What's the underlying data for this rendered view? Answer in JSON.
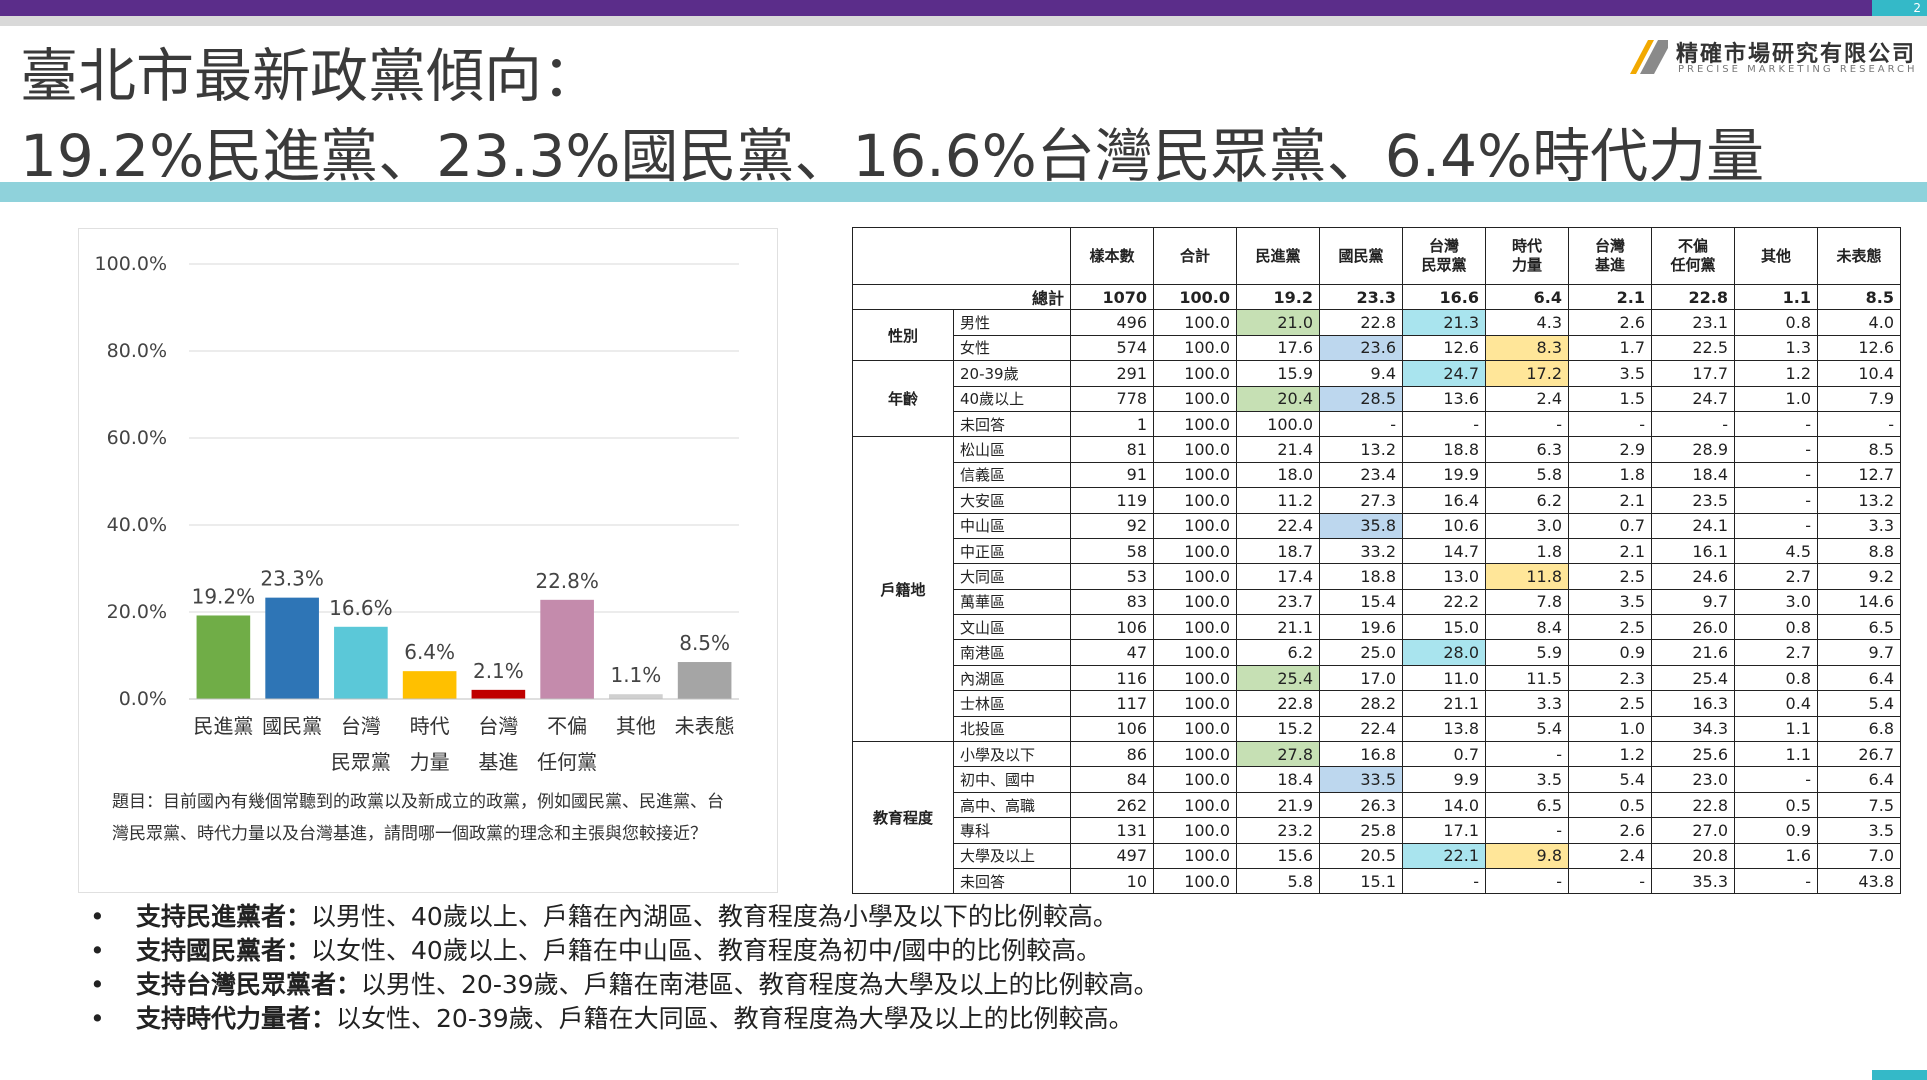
{
  "page_number": "2",
  "title_line1": "臺北市最新政黨傾向：",
  "title_line2": "19.2%民進黨、23.3%國民黨、16.6%台灣民眾黨、6.4%時代力量",
  "logo": {
    "name_cn": "精確市場研究有限公司",
    "name_en": "PRECISE MARKETING RESEARCH"
  },
  "colors": {
    "purple": "#5b2d8a",
    "teal": "#8fd2db",
    "accent": "#34b9c8"
  },
  "question_text": "題目：目前國內有幾個常聽到的政黨以及新成立的政黨，例如國民黨、民進黨、台灣民眾黨、時代力量以及台灣基進，請問哪一個政黨的理念和主張與您較接近？",
  "chart_data": {
    "type": "bar",
    "categories": [
      "民進黨",
      "國民黨",
      "台灣民眾黨",
      "時代力量",
      "台灣基進",
      "不偏任何黨",
      "其他",
      "未表態"
    ],
    "category_lines": [
      [
        "民進黨"
      ],
      [
        "國民黨"
      ],
      [
        "台灣",
        "民眾黨"
      ],
      [
        "時代",
        "力量"
      ],
      [
        "台灣",
        "基進"
      ],
      [
        "不偏",
        "任何黨"
      ],
      [
        "其他"
      ],
      [
        "未表態"
      ]
    ],
    "values": [
      19.2,
      23.3,
      16.6,
      6.4,
      2.1,
      22.8,
      1.1,
      8.5
    ],
    "value_labels": [
      "19.2%",
      "23.3%",
      "16.6%",
      "6.4%",
      "2.1%",
      "22.8%",
      "1.1%",
      "8.5%"
    ],
    "colors": [
      "#70ad47",
      "#2e75b6",
      "#5bc8d8",
      "#ffc000",
      "#c00000",
      "#c48bac",
      "#d0d0d0",
      "#a5a5a5"
    ],
    "ylim": [
      0,
      100
    ],
    "yticks": [
      "0.0%",
      "20.0%",
      "40.0%",
      "60.0%",
      "80.0%",
      "100.0%"
    ],
    "grid": true,
    "xlabel": "",
    "ylabel": "",
    "title": ""
  },
  "table": {
    "headers": [
      "樣本數",
      "合計",
      "民進黨",
      "國民黨",
      "台灣\n民眾黨",
      "時代\n力量",
      "台灣\n基進",
      "不偏\n任何黨",
      "其他",
      "未表態"
    ],
    "total": {
      "label": "總計",
      "values": [
        "1070",
        "100.0",
        "19.2",
        "23.3",
        "16.6",
        "6.4",
        "2.1",
        "22.8",
        "1.1",
        "8.5"
      ]
    },
    "groups": [
      {
        "name": "性別",
        "rows": [
          {
            "label": "男性",
            "values": [
              "496",
              "100.0",
              "21.0",
              "22.8",
              "21.3",
              "4.3",
              "2.6",
              "23.1",
              "0.8",
              "4.0"
            ],
            "hl": {
              "2": "g",
              "4": "c"
            }
          },
          {
            "label": "女性",
            "values": [
              "574",
              "100.0",
              "17.6",
              "23.6",
              "12.6",
              "8.3",
              "1.7",
              "22.5",
              "1.3",
              "12.6"
            ],
            "hl": {
              "3": "b",
              "5": "y"
            }
          }
        ]
      },
      {
        "name": "年齡",
        "rows": [
          {
            "label": "20-39歲",
            "values": [
              "291",
              "100.0",
              "15.9",
              "9.4",
              "24.7",
              "17.2",
              "3.5",
              "17.7",
              "1.2",
              "10.4"
            ],
            "hl": {
              "4": "c",
              "5": "y"
            }
          },
          {
            "label": "40歲以上",
            "values": [
              "778",
              "100.0",
              "20.4",
              "28.5",
              "13.6",
              "2.4",
              "1.5",
              "24.7",
              "1.0",
              "7.9"
            ],
            "hl": {
              "2": "g",
              "3": "b"
            }
          },
          {
            "label": "未回答",
            "values": [
              "1",
              "100.0",
              "100.0",
              "-",
              "-",
              "-",
              "-",
              "-",
              "-",
              "-"
            ],
            "hl": {}
          }
        ]
      },
      {
        "name": "戶籍地",
        "rows": [
          {
            "label": "松山區",
            "values": [
              "81",
              "100.0",
              "21.4",
              "13.2",
              "18.8",
              "6.3",
              "2.9",
              "28.9",
              "-",
              "8.5"
            ],
            "hl": {}
          },
          {
            "label": "信義區",
            "values": [
              "91",
              "100.0",
              "18.0",
              "23.4",
              "19.9",
              "5.8",
              "1.8",
              "18.4",
              "-",
              "12.7"
            ],
            "hl": {}
          },
          {
            "label": "大安區",
            "values": [
              "119",
              "100.0",
              "11.2",
              "27.3",
              "16.4",
              "6.2",
              "2.1",
              "23.5",
              "-",
              "13.2"
            ],
            "hl": {}
          },
          {
            "label": "中山區",
            "values": [
              "92",
              "100.0",
              "22.4",
              "35.8",
              "10.6",
              "3.0",
              "0.7",
              "24.1",
              "-",
              "3.3"
            ],
            "hl": {
              "3": "b"
            }
          },
          {
            "label": "中正區",
            "values": [
              "58",
              "100.0",
              "18.7",
              "33.2",
              "14.7",
              "1.8",
              "2.1",
              "16.1",
              "4.5",
              "8.8"
            ],
            "hl": {}
          },
          {
            "label": "大同區",
            "values": [
              "53",
              "100.0",
              "17.4",
              "18.8",
              "13.0",
              "11.8",
              "2.5",
              "24.6",
              "2.7",
              "9.2"
            ],
            "hl": {
              "5": "y"
            }
          },
          {
            "label": "萬華區",
            "values": [
              "83",
              "100.0",
              "23.7",
              "15.4",
              "22.2",
              "7.8",
              "3.5",
              "9.7",
              "3.0",
              "14.6"
            ],
            "hl": {}
          },
          {
            "label": "文山區",
            "values": [
              "106",
              "100.0",
              "21.1",
              "19.6",
              "15.0",
              "8.4",
              "2.5",
              "26.0",
              "0.8",
              "6.5"
            ],
            "hl": {}
          },
          {
            "label": "南港區",
            "values": [
              "47",
              "100.0",
              "6.2",
              "25.0",
              "28.0",
              "5.9",
              "0.9",
              "21.6",
              "2.7",
              "9.7"
            ],
            "hl": {
              "4": "c"
            }
          },
          {
            "label": "內湖區",
            "values": [
              "116",
              "100.0",
              "25.4",
              "17.0",
              "11.0",
              "11.5",
              "2.3",
              "25.4",
              "0.8",
              "6.4"
            ],
            "hl": {
              "2": "g"
            }
          },
          {
            "label": "士林區",
            "values": [
              "117",
              "100.0",
              "22.8",
              "28.2",
              "21.1",
              "3.3",
              "2.5",
              "16.3",
              "0.4",
              "5.4"
            ],
            "hl": {}
          },
          {
            "label": "北投區",
            "values": [
              "106",
              "100.0",
              "15.2",
              "22.4",
              "13.8",
              "5.4",
              "1.0",
              "34.3",
              "1.1",
              "6.8"
            ],
            "hl": {}
          }
        ]
      },
      {
        "name": "教育程度",
        "rows": [
          {
            "label": "小學及以下",
            "values": [
              "86",
              "100.0",
              "27.8",
              "16.8",
              "0.7",
              "-",
              "1.2",
              "25.6",
              "1.1",
              "26.7"
            ],
            "hl": {
              "2": "g"
            }
          },
          {
            "label": "初中、國中",
            "values": [
              "84",
              "100.0",
              "18.4",
              "33.5",
              "9.9",
              "3.5",
              "5.4",
              "23.0",
              "-",
              "6.4"
            ],
            "hl": {
              "3": "b"
            }
          },
          {
            "label": "高中、高職",
            "values": [
              "262",
              "100.0",
              "21.9",
              "26.3",
              "14.0",
              "6.5",
              "0.5",
              "22.8",
              "0.5",
              "7.5"
            ],
            "hl": {}
          },
          {
            "label": "專科",
            "values": [
              "131",
              "100.0",
              "23.2",
              "25.8",
              "17.1",
              "-",
              "2.6",
              "27.0",
              "0.9",
              "3.5"
            ],
            "hl": {}
          },
          {
            "label": "大學及以上",
            "values": [
              "497",
              "100.0",
              "15.6",
              "20.5",
              "22.1",
              "9.8",
              "2.4",
              "20.8",
              "1.6",
              "7.0"
            ],
            "hl": {
              "4": "c",
              "5": "y"
            }
          },
          {
            "label": "未回答",
            "values": [
              "10",
              "100.0",
              "5.8",
              "15.1",
              "-",
              "-",
              "-",
              "35.3",
              "-",
              "43.8"
            ],
            "hl": {}
          }
        ]
      }
    ]
  },
  "bullets": [
    {
      "bold": "支持民進黨者：",
      "text": "以男性、40歲以上、戶籍在內湖區、教育程度為小學及以下的比例較高。"
    },
    {
      "bold": "支持國民黨者：",
      "text": "以女性、40歲以上、戶籍在中山區、教育程度為初中/國中的比例較高。"
    },
    {
      "bold": "支持台灣民眾黨者：",
      "text": "以男性、20-39歲、戶籍在南港區、教育程度為大學及以上的比例較高。"
    },
    {
      "bold": "支持時代力量者：",
      "text": "以女性、20-39歲、戶籍在大同區、教育程度為大學及以上的比例較高。"
    }
  ]
}
